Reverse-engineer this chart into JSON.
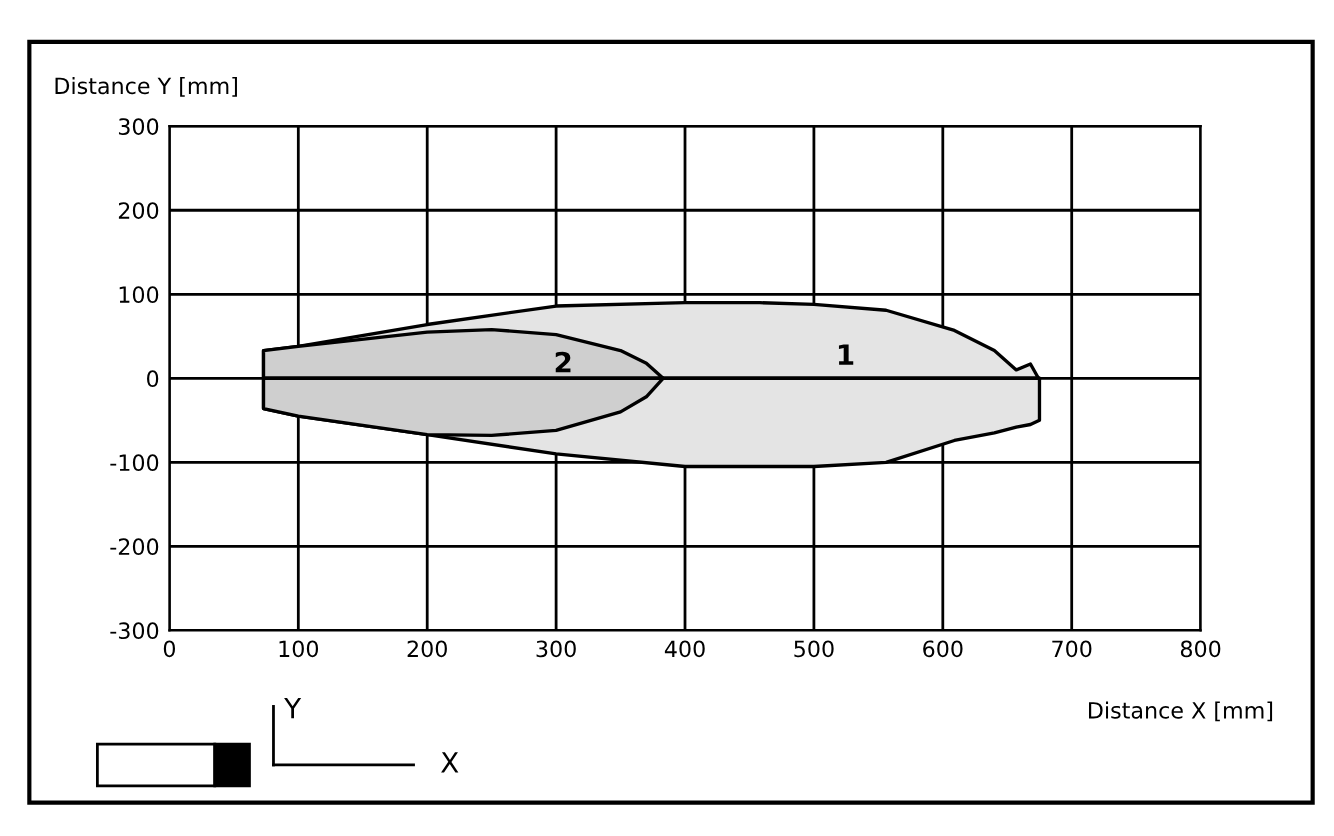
{
  "chart_data": {
    "type": "area",
    "xlabel": "Distance X [mm]",
    "ylabel": "Distance Y [mm]",
    "series": [
      {
        "name": "1",
        "color": "#e4e4e4",
        "x": [
          73,
          100,
          200,
          300,
          400,
          458,
          500,
          556,
          609,
          640,
          657,
          668,
          675
        ],
        "values": [
          33,
          38,
          64,
          86,
          90,
          90,
          88,
          81,
          57,
          33,
          10,
          17,
          -2
        ]
      },
      {
        "color": "#e4e4e4",
        "x": [
          73,
          100,
          200,
          300,
          400,
          458,
          500,
          556,
          609,
          640,
          657,
          668,
          675
        ],
        "values": [
          -36,
          -45,
          -67,
          -90,
          -105,
          -105,
          -105,
          -100,
          -74,
          -65,
          -58,
          -55,
          -50
        ]
      },
      {
        "name": "2",
        "color": "#cfcfcf",
        "x": [
          73,
          100,
          200,
          250,
          300,
          350,
          370,
          383
        ],
        "values": [
          33,
          38,
          55,
          58,
          52,
          33,
          18,
          0
        ]
      },
      {
        "color": "#cfcfcf",
        "x": [
          73,
          100,
          200,
          250,
          300,
          350,
          370,
          383
        ],
        "values": [
          -36,
          -45,
          -67,
          -68,
          -62,
          -40,
          -22,
          0
        ]
      }
    ],
    "annotations": [
      "Y",
      "X"
    ],
    "xlim": [
      0,
      800
    ],
    "xticks": [
      0,
      100,
      200,
      300,
      400,
      500,
      600,
      700,
      800
    ],
    "ylim": [
      -300,
      300
    ],
    "yticks": [
      -300,
      -200,
      -100,
      0,
      100,
      200,
      300
    ],
    "grid": true,
    "legend": false
  }
}
